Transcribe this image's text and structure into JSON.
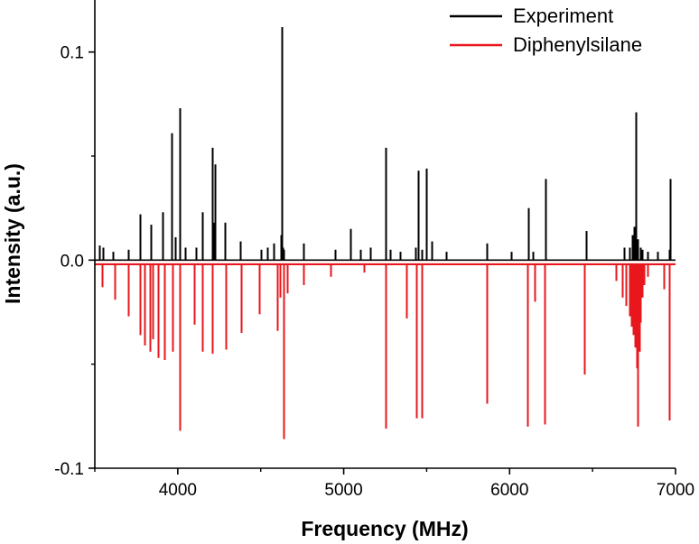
{
  "chart_data": {
    "type": "line",
    "title": "",
    "xlabel": "Frequency (MHz)",
    "ylabel": "Intensity (a.u.)",
    "xlim": [
      3500,
      7000
    ],
    "ylim": [
      -0.1,
      0.125
    ],
    "x_ticks": [
      4000,
      5000,
      6000,
      7000
    ],
    "x_tick_labels": [
      "4000",
      "5000",
      "6000",
      "7000"
    ],
    "y_ticks": [
      -0.1,
      0.0,
      0.1
    ],
    "y_tick_labels": [
      "-0.1",
      "0.0",
      "0.1"
    ],
    "grid": false,
    "legend_position": "top-right",
    "series": [
      {
        "name": "Experiment",
        "color": "#000000",
        "style": "stick-up",
        "baseline": 0.0,
        "x": [
          3525,
          3550,
          3610,
          3700,
          3770,
          3840,
          3910,
          3965,
          3985,
          4010,
          4045,
          4110,
          4150,
          4205,
          4215,
          4225,
          4285,
          4375,
          4500,
          4540,
          4580,
          4620,
          4625,
          4630,
          4640,
          4760,
          4950,
          5040,
          5100,
          5160,
          5255,
          5280,
          5340,
          5430,
          5450,
          5470,
          5500,
          5530,
          5620,
          5860,
          6010,
          6115,
          6140,
          6215,
          6460,
          6690,
          6720,
          6740,
          6750,
          6755,
          6760,
          6765,
          6770,
          6790,
          6800,
          6830,
          6890,
          6960,
          6965
        ],
        "values": [
          0.007,
          0.006,
          0.004,
          0.005,
          0.022,
          0.017,
          0.023,
          0.061,
          0.011,
          0.073,
          0.006,
          0.006,
          0.023,
          0.054,
          0.018,
          0.046,
          0.018,
          0.009,
          0.005,
          0.006,
          0.008,
          0.012,
          0.112,
          0.006,
          0.005,
          0.008,
          0.005,
          0.015,
          0.005,
          0.006,
          0.054,
          0.005,
          0.004,
          0.006,
          0.043,
          0.005,
          0.044,
          0.009,
          0.004,
          0.008,
          0.004,
          0.025,
          0.004,
          0.039,
          0.014,
          0.006,
          0.006,
          0.012,
          0.016,
          0.009,
          0.071,
          0.008,
          0.01,
          0.006,
          0.005,
          0.004,
          0.004,
          0.005,
          0.039
        ]
      },
      {
        "name": "Diphenylsilane",
        "color": "#e8171d",
        "style": "stick-down",
        "baseline": -0.002,
        "x": [
          3545,
          3620,
          3700,
          3770,
          3800,
          3830,
          3850,
          3880,
          3920,
          3970,
          4010,
          4100,
          4150,
          4210,
          4290,
          4380,
          4490,
          4600,
          4615,
          4640,
          4660,
          4760,
          4920,
          5120,
          5250,
          5380,
          5440,
          5470,
          5860,
          6110,
          6150,
          6210,
          6450,
          6640,
          6680,
          6700,
          6720,
          6735,
          6745,
          6755,
          6765,
          6770,
          6780,
          6790,
          6800,
          6810,
          6830,
          6930,
          6960
        ],
        "values": [
          -0.013,
          -0.019,
          -0.027,
          -0.036,
          -0.041,
          -0.044,
          -0.038,
          -0.047,
          -0.048,
          -0.044,
          -0.082,
          -0.031,
          -0.044,
          -0.045,
          -0.043,
          -0.035,
          -0.026,
          -0.034,
          -0.018,
          -0.086,
          -0.016,
          -0.012,
          -0.008,
          -0.006,
          -0.081,
          -0.028,
          -0.076,
          -0.076,
          -0.069,
          -0.08,
          -0.02,
          -0.079,
          -0.055,
          -0.01,
          -0.018,
          -0.022,
          -0.027,
          -0.032,
          -0.036,
          -0.042,
          -0.052,
          -0.08,
          -0.044,
          -0.03,
          -0.018,
          -0.012,
          -0.008,
          -0.014,
          -0.077
        ]
      }
    ]
  }
}
